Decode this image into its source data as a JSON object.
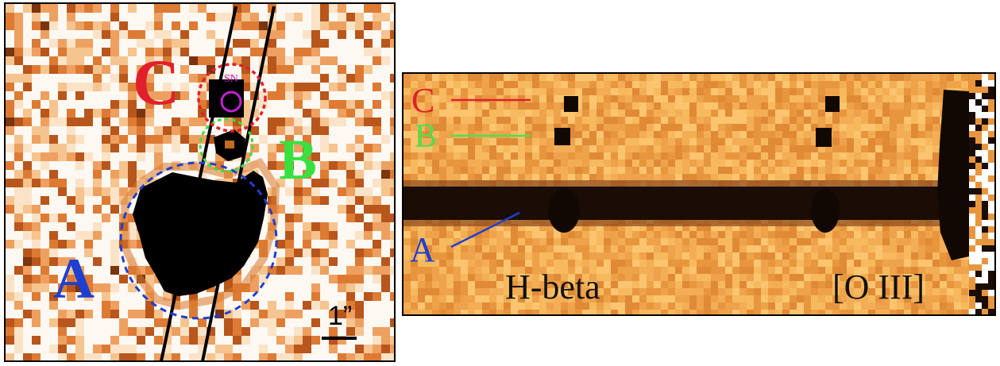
{
  "left_panel": {
    "labels": {
      "a": "A",
      "b": "B",
      "c": "C",
      "sn": "SN"
    },
    "scale_bar": "1”",
    "colors": {
      "a": "#1f3fd0",
      "b": "#38e040",
      "c": "#e0202a",
      "sn": "#c020d0"
    }
  },
  "right_panel": {
    "labels": {
      "a": "A",
      "b": "B",
      "c": "C"
    },
    "lines": {
      "hbeta": "H-beta",
      "oiii": "[O III]"
    },
    "colors": {
      "a": "#1f3fd0",
      "b": "#4ee04e",
      "c": "#e0202a"
    }
  }
}
